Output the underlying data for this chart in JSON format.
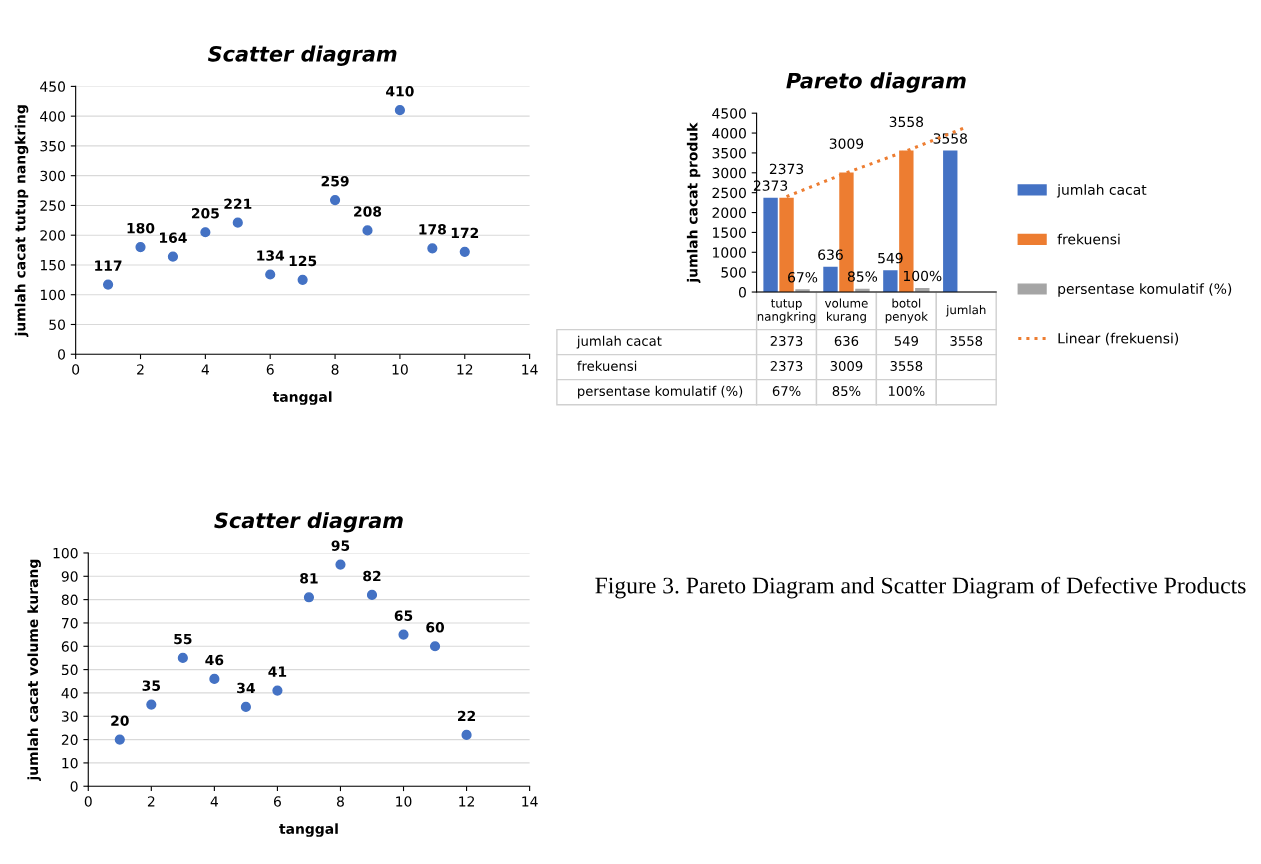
{
  "chart_data": [
    {
      "type": "scatter",
      "title": "Scatter diagram",
      "xlabel": "tanggal",
      "ylabel": "jumlah cacat tutup nangkring",
      "x": [
        1,
        2,
        3,
        4,
        5,
        6,
        7,
        8,
        9,
        10,
        11,
        12
      ],
      "series": [
        {
          "color": "#4472c4",
          "values": [
            117,
            180,
            164,
            205,
            221,
            134,
            125,
            259,
            208,
            410,
            178,
            172
          ]
        }
      ],
      "xlim": [
        0,
        14
      ],
      "xticks": [
        0,
        2,
        4,
        6,
        8,
        10,
        12,
        14
      ],
      "ylim": [
        0,
        450
      ],
      "yticks": [
        0,
        50,
        100,
        150,
        200,
        250,
        300,
        350,
        400,
        450
      ],
      "grid": "y",
      "marker": "circle",
      "data_labels": true
    },
    {
      "type": "bar",
      "title": "Pareto diagram",
      "ylabel": "jumlah cacat produk",
      "categories": [
        "tutup nangkring",
        "volume kurang",
        "botol penyok",
        "jumlah"
      ],
      "series": [
        {
          "name": "jumlah cacat",
          "color": "#4472c4",
          "values": [
            2373,
            636,
            549,
            3558
          ],
          "value_labels": [
            "2373",
            "636",
            "549",
            "3558"
          ]
        },
        {
          "name": "frekuensi",
          "color": "#ed7d31",
          "values": [
            2373,
            3009,
            3558,
            null
          ],
          "value_labels": [
            "2373",
            "3009",
            "3558",
            null
          ]
        },
        {
          "name": "persentase komulatif (%)",
          "color": "#a5a5a5",
          "values": [
            67,
            85,
            100,
            null
          ],
          "value_labels": [
            "67%",
            "85%",
            "100%",
            null
          ]
        },
        {
          "name": "Linear (frekuensi)",
          "type": "line",
          "color": "#ed7d31",
          "line_style": "dotted",
          "values": [
            2400,
            3000,
            3550,
            4150
          ]
        }
      ],
      "ylim": [
        0,
        4500
      ],
      "yticks": [
        0,
        500,
        1000,
        1500,
        2000,
        2500,
        3000,
        3500,
        4000,
        4500
      ],
      "grid": false,
      "legend": "right"
    },
    {
      "type": "scatter",
      "title": "Scatter diagram",
      "xlabel": "tanggal",
      "ylabel": "jumlah cacat volume kurang",
      "x": [
        1,
        2,
        3,
        4,
        5,
        6,
        7,
        8,
        9,
        10,
        11,
        12
      ],
      "series": [
        {
          "color": "#4472c4",
          "values": [
            20,
            35,
            55,
            46,
            34,
            41,
            81,
            95,
            82,
            65,
            60,
            22
          ]
        }
      ],
      "xlim": [
        0,
        14
      ],
      "xticks": [
        0,
        2,
        4,
        6,
        8,
        10,
        12,
        14
      ],
      "ylim": [
        0,
        100
      ],
      "yticks": [
        0,
        10,
        20,
        30,
        40,
        50,
        60,
        70,
        80,
        90,
        100
      ],
      "grid": "y",
      "marker": "circle",
      "data_labels": true,
      "annotations": [
        "Figure 3. Pareto Diagram and Scatter Diagram of Defective Products"
      ]
    }
  ]
}
